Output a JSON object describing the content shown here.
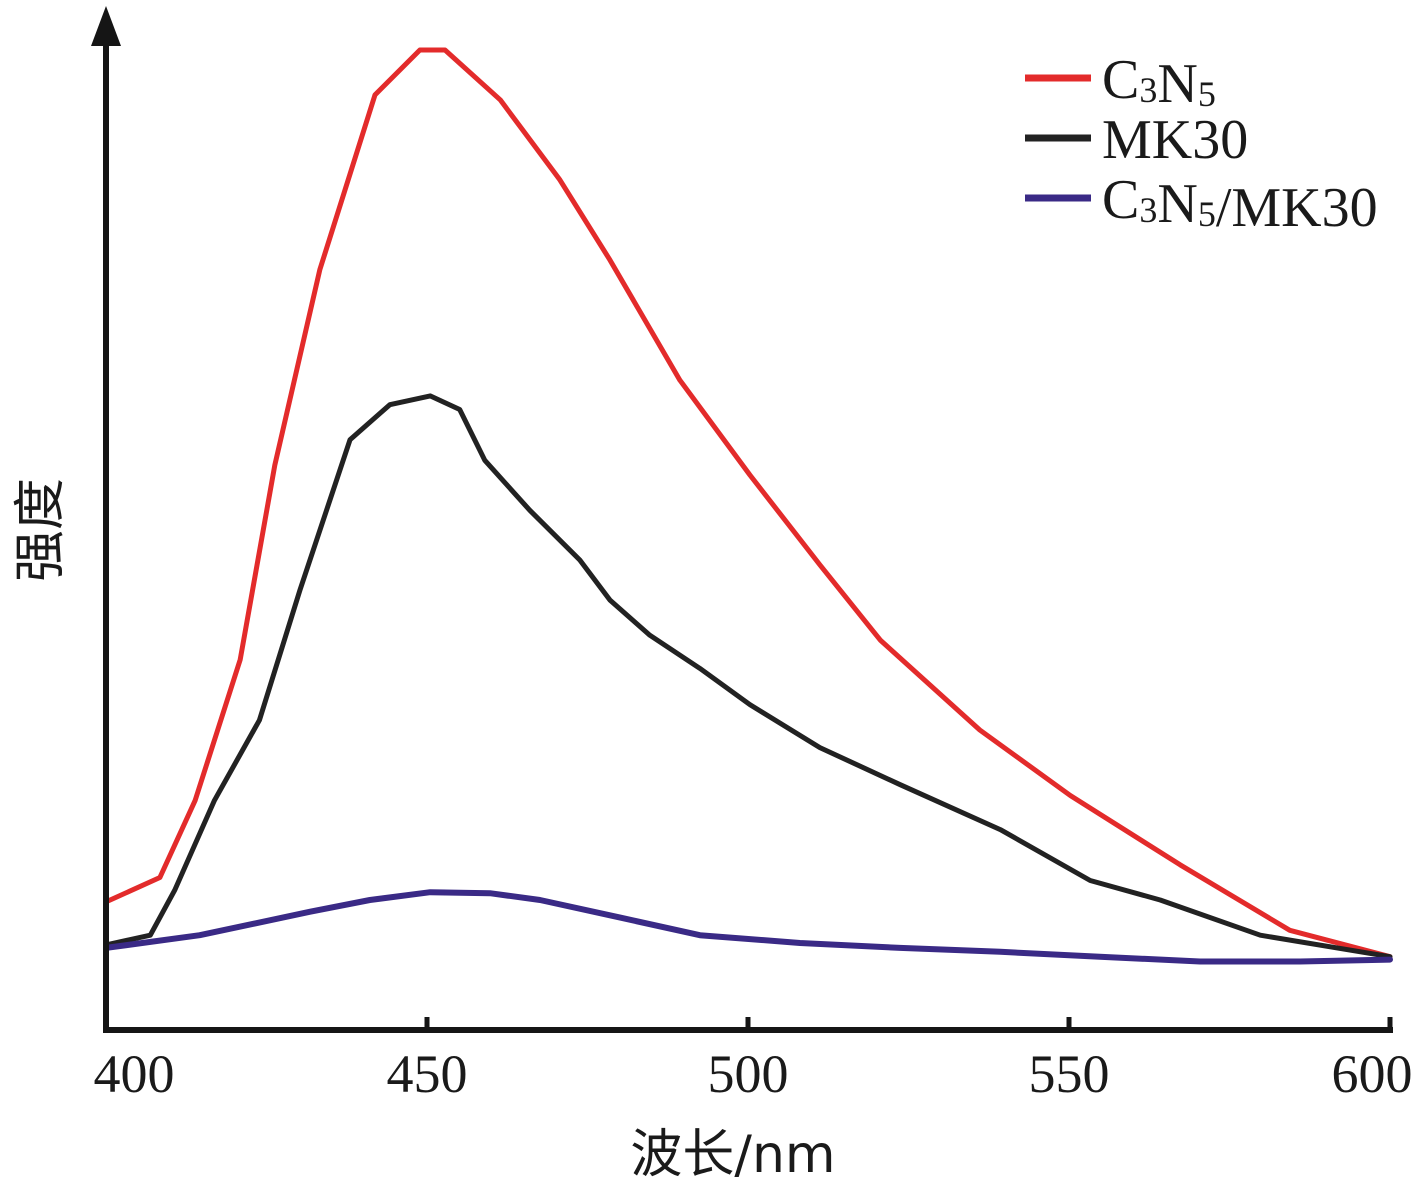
{
  "chart_data": {
    "type": "line",
    "title": "",
    "xlabel": "波长/nm",
    "ylabel": "强度",
    "xlim": [
      400,
      600
    ],
    "ylim": [
      0,
      1.05
    ],
    "xticks": [
      400,
      450,
      500,
      550,
      600
    ],
    "xtick_labels": [
      "400",
      "450",
      "500",
      "550",
      "600"
    ],
    "yticks": [],
    "grid": false,
    "legend_position": "top-right",
    "y_units": "arbitrary (normalized, C3N5 peak = 1.0)",
    "series": [
      {
        "name": "C3N5",
        "legend_base": "C",
        "legend_parts": [
          [
            "C",
            ""
          ],
          [
            "3",
            "sub"
          ],
          [
            "N",
            ""
          ],
          [
            "5",
            "sub"
          ]
        ],
        "color": "#e32b2b",
        "x": [
          400,
          408.4,
          413.9,
          420.9,
          426.3,
          433.3,
          441.9,
          448.9,
          452.8,
          461.4,
          470.7,
          478.5,
          489.4,
          500.3,
          511.2,
          520.6,
          536.1,
          550.2,
          567.3,
          584.4,
          600
        ],
        "y": [
          0.128,
          0.153,
          0.232,
          0.376,
          0.575,
          0.775,
          0.954,
          1.0,
          1.0,
          0.949,
          0.867,
          0.785,
          0.662,
          0.565,
          0.473,
          0.396,
          0.304,
          0.237,
          0.166,
          0.099,
          0.072
        ]
      },
      {
        "name": "MK30",
        "legend_parts": [
          [
            "MK30",
            ""
          ]
        ],
        "color": "#222222",
        "x": [
          400,
          406.9,
          410.7,
          416.9,
          423.9,
          430.2,
          438.0,
          444.2,
          450.5,
          455.1,
          459.0,
          466.0,
          473.8,
          478.5,
          484.7,
          492.5,
          500.3,
          511.2,
          523.7,
          539.3,
          553.3,
          564.2,
          579.8,
          600
        ],
        "y": [
          0.084,
          0.094,
          0.14,
          0.232,
          0.314,
          0.447,
          0.601,
          0.637,
          0.646,
          0.632,
          0.58,
          0.529,
          0.478,
          0.437,
          0.401,
          0.367,
          0.33,
          0.286,
          0.248,
          0.202,
          0.15,
          0.13,
          0.094,
          0.072
        ]
      },
      {
        "name": "C3N5/MK30",
        "legend_parts": [
          [
            "C",
            ""
          ],
          [
            "3",
            "sub"
          ],
          [
            "N",
            ""
          ],
          [
            "5",
            "sub"
          ],
          [
            "/MK30",
            ""
          ]
        ],
        "color": "#3a2a86",
        "x": [
          400,
          414.6,
          431.8,
          441.1,
          450.5,
          459.8,
          467.6,
          480.1,
          492.5,
          508.1,
          523.7,
          539.3,
          554.8,
          570.4,
          586.0,
          600
        ],
        "y": [
          0.081,
          0.094,
          0.118,
          0.13,
          0.138,
          0.137,
          0.13,
          0.112,
          0.094,
          0.086,
          0.081,
          0.077,
          0.072,
          0.067,
          0.067,
          0.069
        ]
      }
    ]
  }
}
